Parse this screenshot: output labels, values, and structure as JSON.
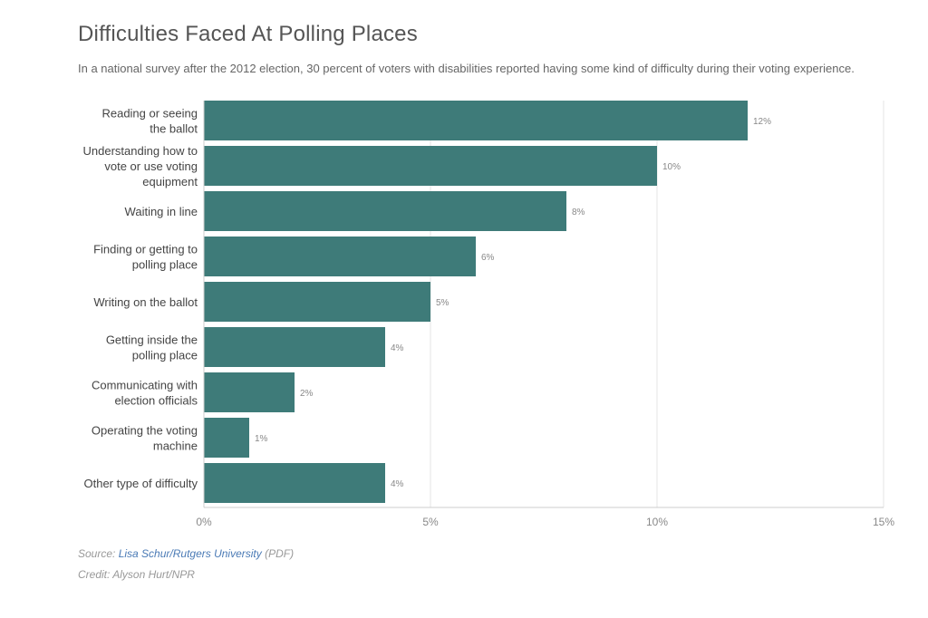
{
  "title": "Difficulties Faced At Polling Places",
  "subtitle": "In a national survey after the 2012 election, 30 percent of voters with disabilities reported having some kind of difficulty during their voting experience.",
  "footer": {
    "source_prefix": "Source:",
    "source_link": "Lisa Schur/Rutgers University",
    "source_suffix": "(PDF)",
    "credit": "Credit: Alyson Hurt/NPR"
  },
  "colors": {
    "bar": "#3e7b79",
    "grid": "#e6e6e6",
    "axis": "#cccccc"
  },
  "chart_data": {
    "type": "bar",
    "orientation": "horizontal",
    "title": "Difficulties Faced At Polling Places",
    "xlim": [
      0,
      15
    ],
    "grid": true,
    "xticks": [
      0,
      5,
      10,
      15
    ],
    "xtick_labels": [
      "0%",
      "5%",
      "10%",
      "15%"
    ],
    "categories": [
      [
        "Reading or seeing",
        "the ballot"
      ],
      [
        "Understanding how to",
        "vote or use voting",
        "equipment"
      ],
      [
        "Waiting in line"
      ],
      [
        "Finding or getting to",
        "polling place"
      ],
      [
        "Writing on the ballot"
      ],
      [
        "Getting inside the",
        "polling place"
      ],
      [
        "Communicating with",
        "election officials"
      ],
      [
        "Operating the voting",
        "machine"
      ],
      [
        "Other type of difficulty"
      ]
    ],
    "values": [
      12,
      10,
      8,
      6,
      5,
      4,
      2,
      1,
      4
    ],
    "value_labels": [
      "12%",
      "10%",
      "8%",
      "6%",
      "5%",
      "4%",
      "2%",
      "1%",
      "4%"
    ]
  }
}
